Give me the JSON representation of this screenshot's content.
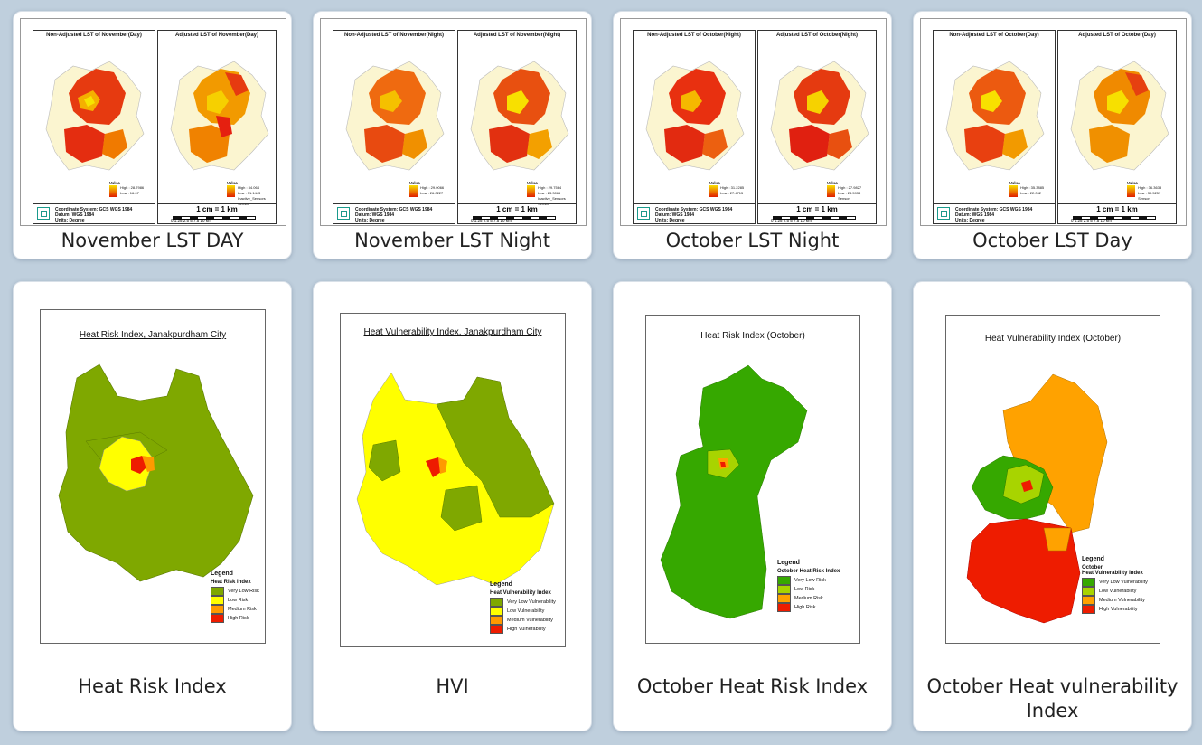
{
  "cards": [
    {
      "caption": "November LST DAY",
      "left_title": "Non-Adjusted LST of November(Day)",
      "right_title": "Adjusted LST of November(Day)",
      "left_high": "High : 28.7986",
      "left_low": "Low : 16.07",
      "right_high": "High : 34.064",
      "right_low": "Low : 31.1443",
      "right_extra": "Inactive_Sensors"
    },
    {
      "caption": "November LST Night",
      "left_title": "Non-Adjusted LST of November(Night)",
      "right_title": "Adjusted LST of November(Night)",
      "left_high": "High : 29.0066",
      "left_low": "Low : 26.0227",
      "right_high": "High : 29.7564",
      "right_low": "Low : 23.3066",
      "right_extra": "Inactive_Sensors"
    },
    {
      "caption": "October LST Night",
      "left_title": "Non-Adjusted LST of October(Night)",
      "right_title": "Adjusted LST of October(Night)",
      "left_high": "High : 31.2285",
      "left_low": "Low : 27.4715",
      "right_high": "High : 27.9827",
      "right_low": "Low : 23.5938",
      "right_extra": ""
    },
    {
      "caption": "October LST Day",
      "left_title": "Non-Adjusted LST of October(Day)",
      "right_title": "Adjusted LST of October(Day)",
      "left_high": "High : 35.3885",
      "left_low": "Low : 22.052",
      "right_high": "High : 36.3633",
      "right_low": "Low : 30.5257",
      "right_extra": ""
    },
    {
      "caption": "Heat Risk Index",
      "map_title": "Heat Risk Index, Janakpurdham City"
    },
    {
      "caption": "HVI",
      "map_title": "Heat Vulnerability Index, Janakpurdham City"
    },
    {
      "caption": "October Heat Risk Index",
      "map_title": "Heat Risk Index (October)"
    },
    {
      "caption": "October Heat vulnerability Index",
      "map_title": "Heat Vulnerability Index (October)"
    }
  ],
  "lst_common": {
    "value_label": "Value",
    "sensor_label": "Sensor",
    "coord_system": "Coordinate System: GCS WGS 1984",
    "datum": "Datum: WGS 1984",
    "units": "Units: Degree",
    "scale_text": "1 cm = 1 km",
    "scale_ticks": "0  1.25 2.5     5      7.5     10",
    "scale_unit": "km"
  },
  "legends": {
    "hri": {
      "title": "Legend",
      "subtitle": "Heat Risk Index",
      "items": [
        "Very Low Risk",
        "Low Risk",
        "Medium Risk",
        "High Risk"
      ]
    },
    "hvi": {
      "title": "Legend",
      "subtitle": "Heat Vulnerability Index",
      "items": [
        "Very Low Vulnerability",
        "Low Vulnerability",
        "Medium Vulnerability",
        "High Vulnerability"
      ]
    },
    "oct_hri": {
      "title": "Legend",
      "subtitle": "October Heat Risk Index",
      "items": [
        "Very Low Risk",
        "Low Risk",
        "Medium Risk",
        "High Risk"
      ]
    },
    "oct_hvi": {
      "title": "Legend",
      "subtitle_line1": "October",
      "subtitle_line2": "Heat Vulnerability Index",
      "items": [
        "Very Low Vulnerability",
        "Low Vulnerability",
        "Medium Vulnerability",
        "High Vulnerability"
      ]
    }
  },
  "colors": {
    "olive": "#7fa800",
    "yellow": "#ffff00",
    "orange": "#ff9a00",
    "red": "#ee1c00",
    "green": "#36a800",
    "lightgreen": "#a8d400",
    "amber": "#ffa200"
  }
}
